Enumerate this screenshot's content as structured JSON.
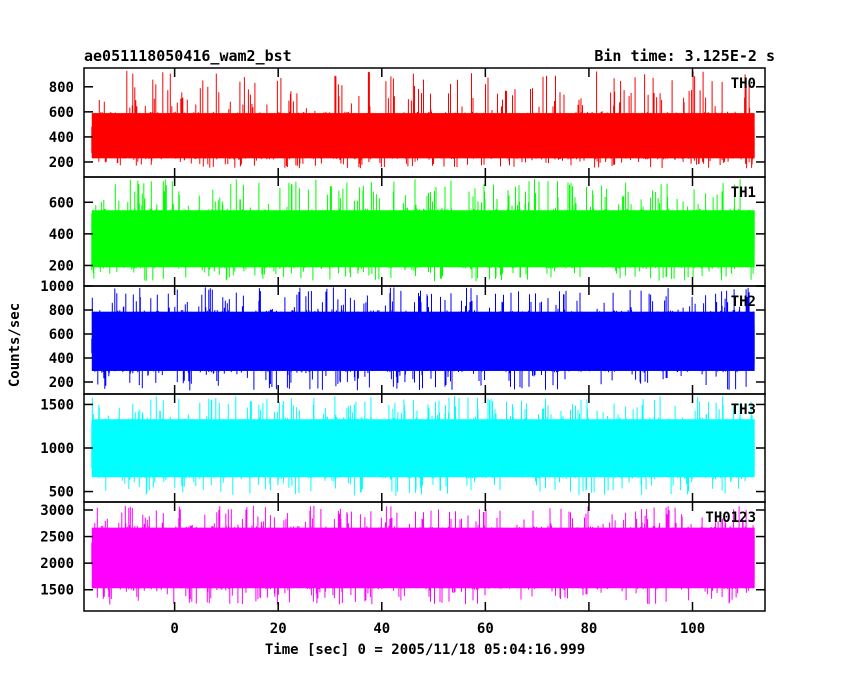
{
  "chart_data": {
    "type": "line",
    "title": "ae051118050416_wam2_bst",
    "subtitle": "Bin time: 3.125E-2 s",
    "xlabel": "Time [sec] 0 = 2005/11/18 05:04:16.999",
    "ylabel": "Counts/sec",
    "xlim": [
      -17.5,
      114
    ],
    "x_ticks": [
      0,
      20,
      40,
      60,
      80,
      100
    ],
    "x_range_data": [
      -16,
      112
    ],
    "grid": false,
    "legend": "none",
    "panels": [
      {
        "name": "TH0",
        "color": "#ff0000",
        "ylim": [
          80,
          950
        ],
        "y_ticks": [
          200,
          400,
          600,
          800
        ],
        "mean": 400,
        "typical_min": 220,
        "typical_max": 600,
        "extreme_min": 150,
        "extreme_max": 930
      },
      {
        "name": "TH1",
        "color": "#00ff00",
        "ylim": [
          70,
          760
        ],
        "y_ticks": [
          200,
          400,
          600
        ],
        "mean": 350,
        "typical_min": 180,
        "typical_max": 560,
        "extreme_min": 100,
        "extreme_max": 750
      },
      {
        "name": "TH2",
        "color": "#0000ff",
        "ylim": [
          100,
          1000
        ],
        "y_ticks": [
          200,
          400,
          600,
          800,
          1000
        ],
        "mean": 520,
        "typical_min": 280,
        "typical_max": 800,
        "extreme_min": 130,
        "extreme_max": 990
      },
      {
        "name": "TH3",
        "color": "#00ffff",
        "ylim": [
          380,
          1620
        ],
        "y_ticks": [
          500,
          1000,
          1500
        ],
        "mean": 950,
        "typical_min": 650,
        "typical_max": 1350,
        "extreme_min": 450,
        "extreme_max": 1600
      },
      {
        "name": "TH0123",
        "color": "#ff00ff",
        "ylim": [
          1100,
          3150
        ],
        "y_ticks": [
          1500,
          2000,
          2500,
          3000
        ],
        "mean": 2050,
        "typical_min": 1500,
        "typical_max": 2700,
        "extreme_min": 1220,
        "extreme_max": 3080
      }
    ]
  }
}
